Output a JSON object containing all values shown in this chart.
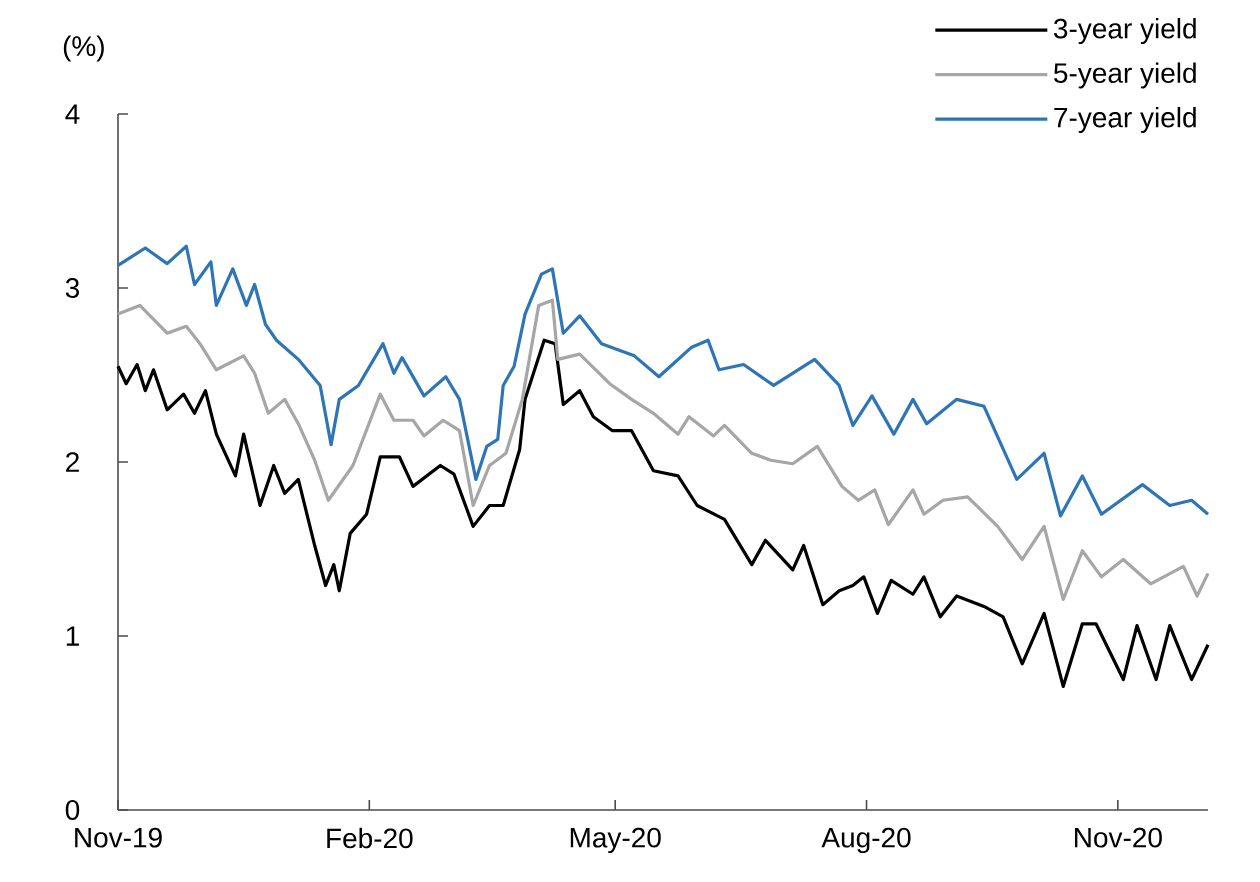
{
  "chart_data": {
    "type": "line",
    "ylabel": "(%)",
    "legend": "top right",
    "xlim": [
      "2019-11-01",
      "2020-12-04"
    ],
    "ylim": [
      0,
      4
    ],
    "yticks": [
      0,
      1,
      2,
      3,
      4
    ],
    "xticks": [
      {
        "value": "2019-11-01",
        "label": "Nov-19"
      },
      {
        "value": "2020-02-01",
        "label": "Feb-20"
      },
      {
        "value": "2020-05-01",
        "label": "May-20"
      },
      {
        "value": "2020-08-01",
        "label": "Aug-20"
      },
      {
        "value": "2020-11-01",
        "label": "Nov-20"
      }
    ],
    "series": [
      {
        "name": "3-year yield",
        "color": "#000000",
        "x": [
          "2019-11-01",
          "2019-11-04",
          "2019-11-08",
          "2019-11-11",
          "2019-11-14",
          "2019-11-19",
          "2019-11-25",
          "2019-11-29",
          "2019-12-03",
          "2019-12-07",
          "2019-12-14",
          "2019-12-17",
          "2019-12-23",
          "2019-12-28",
          "2020-01-01",
          "2020-01-06",
          "2020-01-12",
          "2020-01-16",
          "2020-01-19",
          "2020-01-21",
          "2020-01-25",
          "2020-01-31",
          "2020-02-05",
          "2020-02-12",
          "2020-02-17",
          "2020-02-27",
          "2020-03-03",
          "2020-03-10",
          "2020-03-16",
          "2020-03-21",
          "2020-03-27",
          "2020-03-29",
          "2020-04-05",
          "2020-04-09",
          "2020-04-12",
          "2020-04-18",
          "2020-04-23",
          "2020-04-30",
          "2020-05-07",
          "2020-05-15",
          "2020-05-24",
          "2020-05-31",
          "2020-06-10",
          "2020-06-20",
          "2020-06-25",
          "2020-07-05",
          "2020-07-09",
          "2020-07-16",
          "2020-07-22",
          "2020-07-27",
          "2020-07-31",
          "2020-08-05",
          "2020-08-10",
          "2020-08-18",
          "2020-08-22",
          "2020-08-28",
          "2020-09-03",
          "2020-09-13",
          "2020-09-20",
          "2020-09-27",
          "2020-10-05",
          "2020-10-12",
          "2020-10-19",
          "2020-10-24",
          "2020-11-03",
          "2020-11-08",
          "2020-11-15",
          "2020-11-20",
          "2020-11-28",
          "2020-12-04"
        ],
        "values": [
          2.55,
          2.45,
          2.56,
          2.41,
          2.53,
          2.3,
          2.39,
          2.28,
          2.41,
          2.16,
          1.92,
          2.16,
          1.75,
          1.98,
          1.82,
          1.9,
          1.52,
          1.29,
          1.41,
          1.26,
          1.59,
          1.7,
          2.03,
          2.03,
          1.86,
          1.98,
          1.93,
          1.63,
          1.75,
          1.75,
          2.07,
          2.36,
          2.7,
          2.68,
          2.33,
          2.41,
          2.26,
          2.18,
          2.18,
          1.95,
          1.92,
          1.75,
          1.67,
          1.41,
          1.55,
          1.38,
          1.52,
          1.18,
          1.26,
          1.29,
          1.34,
          1.13,
          1.32,
          1.24,
          1.34,
          1.11,
          1.23,
          1.17,
          1.11,
          0.84,
          1.13,
          0.71,
          1.07,
          1.07,
          0.75,
          1.06,
          0.75,
          1.06,
          0.75,
          0.95
        ]
      },
      {
        "name": "5-year yield",
        "color": "#a6a6a6",
        "x": [
          "2019-11-01",
          "2019-11-09",
          "2019-11-19",
          "2019-11-26",
          "2019-12-01",
          "2019-12-07",
          "2019-12-17",
          "2019-12-21",
          "2019-12-26",
          "2020-01-01",
          "2020-01-06",
          "2020-01-12",
          "2020-01-17",
          "2020-01-26",
          "2020-02-05",
          "2020-02-10",
          "2020-02-17",
          "2020-02-21",
          "2020-02-28",
          "2020-03-05",
          "2020-03-10",
          "2020-03-16",
          "2020-03-22",
          "2020-03-28",
          "2020-04-03",
          "2020-04-08",
          "2020-04-10",
          "2020-04-18",
          "2020-04-29",
          "2020-05-07",
          "2020-05-15",
          "2020-05-24",
          "2020-05-28",
          "2020-06-06",
          "2020-06-10",
          "2020-06-20",
          "2020-06-27",
          "2020-07-05",
          "2020-07-14",
          "2020-07-23",
          "2020-07-29",
          "2020-08-04",
          "2020-08-09",
          "2020-08-18",
          "2020-08-22",
          "2020-08-29",
          "2020-09-07",
          "2020-09-18",
          "2020-09-27",
          "2020-10-05",
          "2020-10-12",
          "2020-10-19",
          "2020-10-26",
          "2020-11-03",
          "2020-11-13",
          "2020-11-25",
          "2020-11-30",
          "2020-12-04"
        ],
        "values": [
          2.85,
          2.9,
          2.74,
          2.78,
          2.68,
          2.53,
          2.61,
          2.51,
          2.28,
          2.36,
          2.22,
          2.01,
          1.78,
          1.98,
          2.39,
          2.24,
          2.24,
          2.15,
          2.24,
          2.18,
          1.75,
          1.98,
          2.05,
          2.36,
          2.9,
          2.93,
          2.59,
          2.62,
          2.45,
          2.36,
          2.28,
          2.16,
          2.26,
          2.15,
          2.21,
          2.05,
          2.01,
          1.99,
          2.09,
          1.86,
          1.78,
          1.84,
          1.64,
          1.84,
          1.7,
          1.78,
          1.8,
          1.63,
          1.44,
          1.63,
          1.21,
          1.49,
          1.34,
          1.44,
          1.3,
          1.4,
          1.23,
          1.36
        ]
      },
      {
        "name": "7-year yield",
        "color": "#2e75b6",
        "x": [
          "2019-11-01",
          "2019-11-11",
          "2019-11-19",
          "2019-11-26",
          "2019-11-29",
          "2019-12-05",
          "2019-12-07",
          "2019-12-13",
          "2019-12-18",
          "2019-12-21",
          "2019-12-25",
          "2019-12-29",
          "2020-01-06",
          "2020-01-14",
          "2020-01-18",
          "2020-01-21",
          "2020-01-28",
          "2020-02-06",
          "2020-02-10",
          "2020-02-13",
          "2020-02-21",
          "2020-02-29",
          "2020-03-05",
          "2020-03-11",
          "2020-03-15",
          "2020-03-19",
          "2020-03-21",
          "2020-03-25",
          "2020-03-29",
          "2020-04-04",
          "2020-04-08",
          "2020-04-12",
          "2020-04-18",
          "2020-04-26",
          "2020-05-08",
          "2020-05-17",
          "2020-05-29",
          "2020-06-04",
          "2020-06-08",
          "2020-06-17",
          "2020-06-28",
          "2020-07-13",
          "2020-07-22",
          "2020-07-27",
          "2020-08-03",
          "2020-08-11",
          "2020-08-18",
          "2020-08-23",
          "2020-09-03",
          "2020-09-13",
          "2020-09-25",
          "2020-10-05",
          "2020-10-11",
          "2020-10-19",
          "2020-10-26",
          "2020-11-10",
          "2020-11-20",
          "2020-11-28",
          "2020-12-04"
        ],
        "values": [
          3.13,
          3.23,
          3.14,
          3.24,
          3.02,
          3.15,
          2.9,
          3.11,
          2.9,
          3.02,
          2.79,
          2.7,
          2.59,
          2.44,
          2.1,
          2.36,
          2.44,
          2.68,
          2.51,
          2.6,
          2.38,
          2.49,
          2.36,
          1.9,
          2.09,
          2.13,
          2.44,
          2.55,
          2.85,
          3.08,
          3.11,
          2.74,
          2.84,
          2.68,
          2.61,
          2.49,
          2.66,
          2.7,
          2.53,
          2.56,
          2.44,
          2.59,
          2.44,
          2.21,
          2.38,
          2.16,
          2.36,
          2.22,
          2.36,
          2.32,
          1.9,
          2.05,
          1.69,
          1.92,
          1.7,
          1.87,
          1.75,
          1.78,
          1.7
        ]
      }
    ]
  }
}
